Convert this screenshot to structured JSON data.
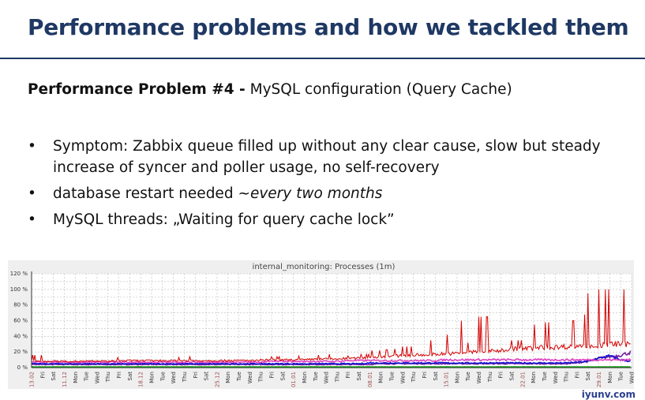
{
  "slide": {
    "title": "Performance problems and how we tackled them",
    "subtitle_bold": "Performance Problem #4 -",
    "subtitle_rest": " MySQL configuration (Query Cache)",
    "bullets": [
      {
        "text": "Symptom: Zabbix queue filled up without any clear cause, slow but steady increase of syncer and poller usage, no self-recovery",
        "italic": ""
      },
      {
        "text": "database restart needed ",
        "italic": "~every two months"
      },
      {
        "text": "MySQL threads: „Waiting for query cache lock”",
        "italic": ""
      }
    ]
  },
  "watermark": "iyunv.com",
  "chart_data": {
    "type": "line",
    "title": "internal_monitoring: Processes (1m)",
    "ylim": [
      0,
      120
    ],
    "yticks": [
      "0 %",
      "20 %",
      "40 %",
      "60 %",
      "80 %",
      "100 %",
      "120 %"
    ],
    "grid": true,
    "xticks": [
      "13.02",
      "Fri",
      "Sat",
      "11.12",
      "Mon",
      "Tue",
      "Wed",
      "Thu",
      "Fri",
      "Sat",
      "18.12",
      "Mon",
      "Tue",
      "Wed",
      "Thu",
      "Fri",
      "Sat",
      "25.12",
      "Mon",
      "Tue",
      "Wed",
      "Thu",
      "Fri",
      "Sat",
      "01.01",
      "Mon",
      "Tue",
      "Wed",
      "Thu",
      "Fri",
      "Sat",
      "08.01",
      "Mon",
      "Tue",
      "Wed",
      "Thu",
      "Fri",
      "Sat",
      "15.01",
      "Mon",
      "Tue",
      "Wed",
      "Thu",
      "Fri",
      "Sat",
      "22.01",
      "Mon",
      "Tue",
      "Wed",
      "Thu",
      "Fri",
      "Sat",
      "29.01",
      "Mon",
      "Tue",
      "Wed"
    ],
    "date_tick_color": "#a05050",
    "series": [
      {
        "color": "#d40000",
        "baseline": [
          9,
          8,
          8,
          8,
          8,
          8,
          8,
          8,
          9,
          9,
          9,
          9,
          9,
          9,
          9,
          9,
          9,
          9,
          9,
          9,
          9,
          9,
          10,
          10,
          10,
          10,
          11,
          11,
          11,
          12,
          12,
          13,
          14,
          15,
          15,
          16,
          16,
          17,
          18,
          18,
          20,
          20,
          21,
          22,
          24,
          24,
          25,
          26,
          26,
          27,
          28,
          28,
          28,
          30,
          30,
          30
        ],
        "peaks": [
          16,
          9,
          9,
          10,
          9,
          9,
          9,
          13,
          16,
          10,
          9,
          9,
          10,
          13,
          14,
          33,
          10,
          9,
          10,
          10,
          10,
          11,
          14,
          14,
          15,
          15,
          16,
          17,
          20,
          15,
          17,
          22,
          23,
          24,
          27,
          28,
          35,
          40,
          42,
          60,
          32,
          65,
          30,
          52,
          35,
          62,
          55,
          58,
          50,
          60,
          68,
          95,
          100,
          98,
          100,
          100
        ]
      },
      {
        "color": "#e040c0",
        "baseline": [
          7,
          7,
          7,
          7,
          7,
          7,
          7,
          7,
          7,
          7,
          7,
          7,
          7,
          7,
          7,
          7,
          7,
          7,
          7,
          7,
          7,
          7,
          8,
          8,
          8,
          8,
          8,
          8,
          8,
          9,
          9,
          9,
          9,
          9,
          9,
          9,
          9,
          9,
          10,
          10,
          10,
          10,
          10,
          10,
          10,
          10,
          10,
          10,
          10,
          10,
          10,
          10,
          10,
          10,
          10,
          10
        ]
      },
      {
        "color": "#1010d0",
        "baseline": [
          5,
          5,
          5,
          5,
          5,
          5,
          5,
          5,
          5,
          5,
          5,
          5,
          5,
          5,
          5,
          5,
          5,
          5,
          5,
          5,
          5,
          5,
          5,
          5,
          5,
          5,
          5,
          5,
          5,
          5,
          5,
          6,
          6,
          6,
          6,
          6,
          6,
          6,
          6,
          6,
          6,
          6,
          6,
          6,
          6,
          6,
          6,
          6,
          6,
          6,
          7,
          8,
          12,
          15,
          10,
          8
        ]
      },
      {
        "color": "#7020a0",
        "baseline": [
          4,
          4,
          4,
          4,
          4,
          4,
          4,
          4,
          4,
          4,
          4,
          4,
          4,
          4,
          4,
          4,
          4,
          4,
          4,
          4,
          4,
          4,
          4,
          4,
          4,
          4,
          4,
          4,
          4,
          4,
          4,
          4,
          5,
          5,
          5,
          5,
          5,
          5,
          5,
          5,
          5,
          5,
          5,
          5,
          5,
          5,
          5,
          5,
          5,
          5,
          6,
          8,
          12,
          14,
          16,
          20
        ]
      },
      {
        "color": "#10a010",
        "baseline": [
          1,
          1,
          1,
          1,
          1,
          1,
          1,
          1,
          1,
          1,
          1,
          1,
          1,
          1,
          1,
          1,
          1,
          1,
          1,
          1,
          1,
          1,
          1,
          1,
          1,
          1,
          1,
          1,
          1,
          1,
          1,
          1,
          1,
          1,
          1,
          1,
          1,
          1,
          1,
          1,
          1,
          1,
          1,
          1,
          1,
          1,
          1,
          1,
          1,
          1,
          1,
          1,
          1,
          1,
          1,
          1
        ]
      }
    ]
  }
}
